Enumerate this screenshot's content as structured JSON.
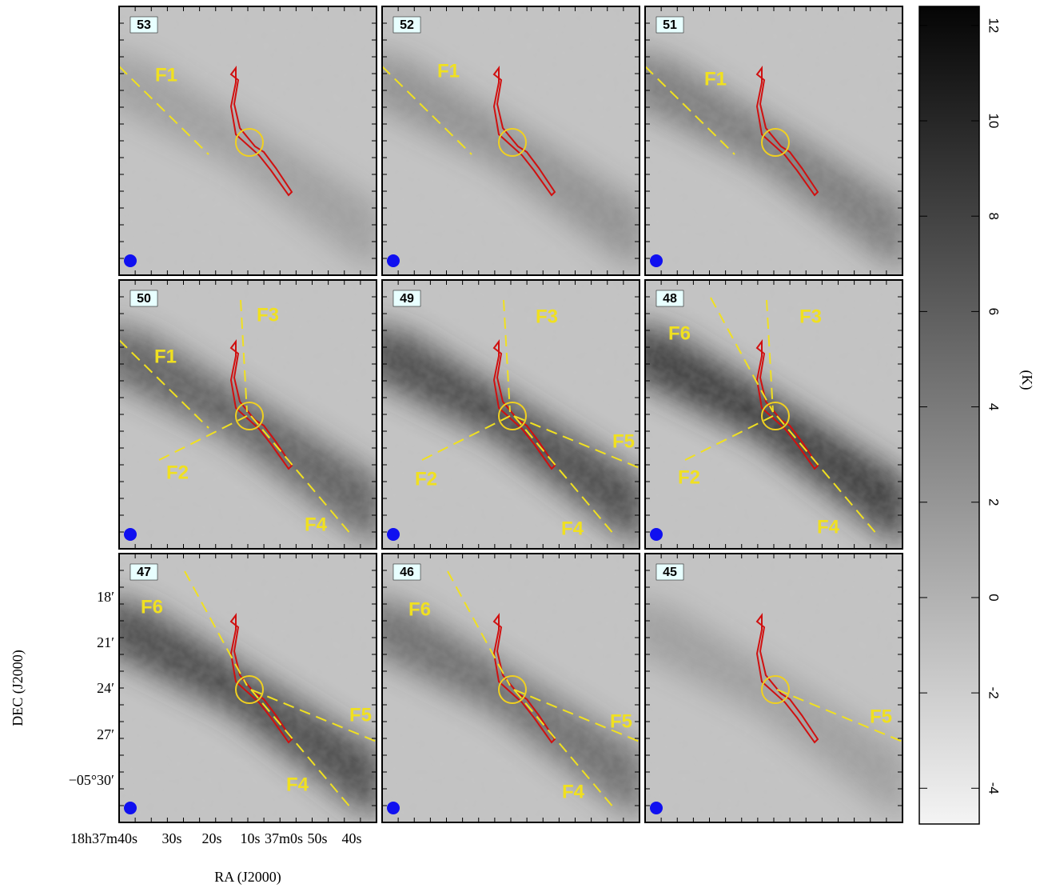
{
  "panels": [
    {
      "channel": "53",
      "labels": [
        "F1"
      ]
    },
    {
      "channel": "52",
      "labels": [
        "F1"
      ]
    },
    {
      "channel": "51",
      "labels": [
        "F1"
      ]
    },
    {
      "channel": "50",
      "labels": [
        "F3",
        "F1",
        "F2",
        "F4"
      ]
    },
    {
      "channel": "49",
      "labels": [
        "F3",
        "F5",
        "F2",
        "F4"
      ]
    },
    {
      "channel": "48",
      "labels": [
        "F6",
        "F3",
        "F2",
        "F4"
      ]
    },
    {
      "channel": "47",
      "labels": [
        "F6",
        "F5",
        "F4"
      ]
    },
    {
      "channel": "46",
      "labels": [
        "F6",
        "F5",
        "F4"
      ]
    },
    {
      "channel": "45",
      "labels": [
        "F5"
      ]
    }
  ],
  "axes": {
    "xlabel": "RA (J2000)",
    "ylabel": "DEC (J2000)",
    "xticks": [
      "18h37m40s",
      "30s",
      "20s",
      "10s",
      "37m0s",
      "50s",
      "40s"
    ],
    "yticks": [
      "18′",
      "21′",
      "24′",
      "27′",
      "−05°30′"
    ]
  },
  "colorbar": {
    "label": "(K)",
    "ylim": [
      -4.75,
      12.4
    ],
    "yticks": [
      -4,
      -2,
      0,
      2,
      4,
      6,
      8,
      10,
      12
    ]
  }
}
